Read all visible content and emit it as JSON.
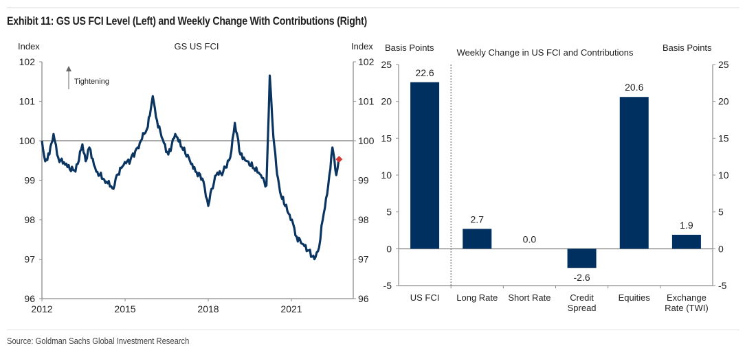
{
  "title": "Exhibit 11: GS US FCI Level (Left) and Weekly Change With Contributions (Right)",
  "source": "Source: Goldman Sachs Global Investment Research",
  "colors": {
    "line": "#0b3561",
    "bar": "#00305f",
    "marker": "#d23a36",
    "axis": "#8c8c8c"
  },
  "chart_data": [
    {
      "type": "line",
      "title": "GS US FCI",
      "ylabel_left": "Index",
      "ylabel_right": "Index",
      "ylim": [
        96,
        102
      ],
      "yticks": [
        96,
        97,
        98,
        99,
        100,
        101,
        102
      ],
      "xlim": [
        2012,
        2023.5
      ],
      "xticks": [
        2012,
        2015,
        2018,
        2021
      ],
      "reference_line": 100,
      "annotation": "Tightening",
      "series": [
        {
          "name": "GS US FCI",
          "x": [
            2012.0,
            2012.12,
            2012.27,
            2012.42,
            2012.59,
            2012.84,
            2013.21,
            2013.46,
            2013.58,
            2013.71,
            2013.96,
            2014.33,
            2014.58,
            2014.7,
            2014.95,
            2015.2,
            2015.45,
            2015.69,
            2015.82,
            2016.0,
            2016.15,
            2016.32,
            2016.56,
            2016.81,
            2017.05,
            2017.3,
            2017.54,
            2017.79,
            2018.0,
            2018.12,
            2018.29,
            2018.54,
            2018.79,
            2018.96,
            2019.16,
            2019.41,
            2019.65,
            2019.9,
            2020.1,
            2020.22,
            2020.35,
            2020.45,
            2020.59,
            2020.77,
            2021.02,
            2021.19,
            2021.39,
            2021.63,
            2021.83,
            2022.0,
            2022.13,
            2022.33,
            2022.48,
            2022.62,
            2022.7
          ],
          "values": [
            100.0,
            99.48,
            99.65,
            100.17,
            99.57,
            99.39,
            99.22,
            99.91,
            99.48,
            99.83,
            99.22,
            98.96,
            98.78,
            99.13,
            99.39,
            99.53,
            99.83,
            100.17,
            100.35,
            101.13,
            100.52,
            100.09,
            99.65,
            100.17,
            99.83,
            99.57,
            99.22,
            99.04,
            98.35,
            98.78,
            99.13,
            99.22,
            99.57,
            100.45,
            99.65,
            99.48,
            99.3,
            99.13,
            98.87,
            101.65,
            100.09,
            99.39,
            98.7,
            98.35,
            98.0,
            97.57,
            97.39,
            97.22,
            97.0,
            97.3,
            98.0,
            98.87,
            99.83,
            99.13,
            99.48
          ]
        }
      ],
      "latest_marker": {
        "x": 2022.72,
        "value": 99.53
      }
    },
    {
      "type": "bar",
      "title": "Weekly Change in US FCI and Contributions",
      "ylabel_left": "Basis Points",
      "ylabel_right": "Basis Points",
      "ylim": [
        -5,
        25
      ],
      "yticks": [
        -5,
        0,
        5,
        10,
        15,
        20,
        25
      ],
      "categories": [
        "US FCI",
        "Long Rate",
        "Short Rate",
        "Credit Spread",
        "Equities",
        "Exchange Rate (TWI)"
      ],
      "category_lines": [
        [
          "US FCI"
        ],
        [
          "Long Rate"
        ],
        [
          "Short Rate"
        ],
        [
          "Credit",
          "Spread"
        ],
        [
          "Equities"
        ],
        [
          "Exchange",
          "Rate (TWI)"
        ]
      ],
      "values": [
        22.6,
        2.7,
        0.0,
        -2.6,
        20.6,
        1.9
      ],
      "labels": [
        "22.6",
        "2.7",
        "0.0",
        "-2.6",
        "20.6",
        "1.9"
      ],
      "separator_after_index": 0
    }
  ]
}
